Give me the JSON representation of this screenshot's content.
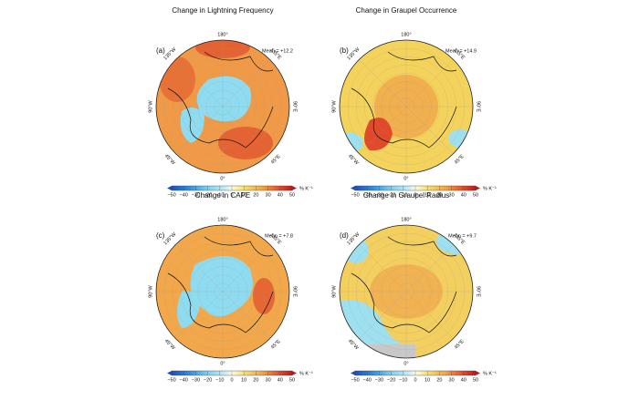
{
  "panels": [
    {
      "label": "(a)",
      "title": "Change in Lightning Frequency",
      "mean": "Mean = +12.2"
    },
    {
      "label": "(b)",
      "title": "Change in Graupel Occurrence",
      "mean": "Mean = +14.9"
    },
    {
      "label": "(c)",
      "title": "Change in CAPE",
      "mean": "Mean = +7.8"
    },
    {
      "label": "(d)",
      "title": "Change in Graupel Radius",
      "mean": "Mean = +9.7"
    }
  ],
  "longitudes": [
    "180°",
    "135°E",
    "90°E",
    "45°E",
    "0°",
    "45°W",
    "90°W",
    "135°W"
  ],
  "colorbar": {
    "ticks": [
      "−50",
      "−40",
      "−30",
      "−20",
      "−10",
      "0",
      "10",
      "20",
      "30",
      "40",
      "50"
    ],
    "unit": "% K⁻¹"
  }
}
